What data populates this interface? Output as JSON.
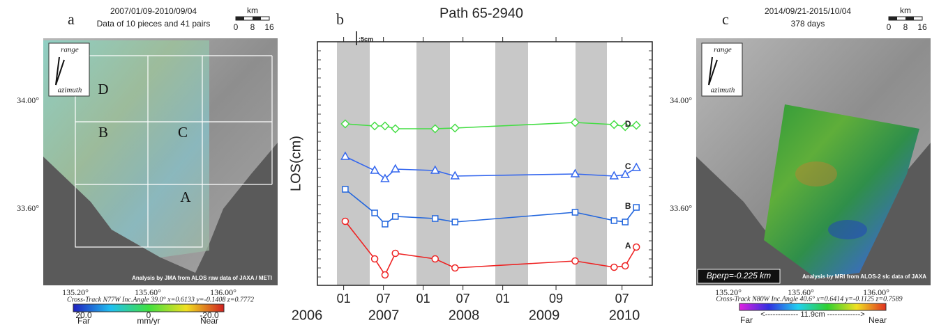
{
  "panel_a": {
    "letter": "a",
    "title": "2007/01/09-2010/09/04",
    "subtitle": "Data of 10 pieces and 41 pairs",
    "scale_unit": "km",
    "scale_ticks": [
      "0",
      "8",
      "16"
    ],
    "lat_labels": [
      "34.00°",
      "33.60°"
    ],
    "lon_labels": [
      "135.20°",
      "135.60°",
      "136.00°"
    ],
    "range": "range",
    "azimuth": "azimuth",
    "region_labels": [
      "D",
      "B",
      "C",
      "A"
    ],
    "credit": "Analysis by JMA from ALOS raw data of JAXA / METI",
    "geometry": "Cross-Track N77W Inc.Angle 39.0° x=0.6133 y=-0.1408 z=0.7772",
    "colorbar_ticks": [
      "20.0",
      "0",
      "-20.0"
    ],
    "colorbar_far": "Far",
    "colorbar_unit": "mm/yr",
    "colorbar_near": "Near"
  },
  "chart_data": {
    "type": "line",
    "letter": "b",
    "title": "Path 65-2940",
    "y_label": "LOS(cm)",
    "scale_label": ":5cm",
    "x_group_labels": [
      "2006",
      "2007",
      "2008",
      "2009",
      "2010"
    ],
    "xlim": [
      2006.67,
      2010.88
    ],
    "xticks": [
      {
        "value": 2007.0,
        "label": "01"
      },
      {
        "value": 2007.5,
        "label": "07"
      },
      {
        "value": 2008.0,
        "label": "01"
      },
      {
        "value": 2008.5,
        "label": "07"
      },
      {
        "value": 2009.0,
        "label": "01"
      },
      {
        "value": 2009.67,
        "label": "09"
      },
      {
        "value": 2010.5,
        "label": "07"
      }
    ],
    "ylim": [
      0,
      87.5
    ],
    "x": [
      2007.02,
      2007.39,
      2007.52,
      2007.65,
      2008.15,
      2008.4,
      2009.91,
      2010.4,
      2010.54,
      2010.68
    ],
    "series": [
      {
        "name": "D",
        "color": "#44dd44",
        "marker": "diamond",
        "values": [
          58,
          57.25,
          57.25,
          56.25,
          56.25,
          56.5,
          58.5,
          57.75,
          57,
          57.5
        ]
      },
      {
        "name": "C",
        "color": "#3366ee",
        "marker": "triangle",
        "values": [
          46.25,
          41.25,
          38.25,
          41.75,
          41.25,
          39.25,
          40,
          39.25,
          39.75,
          42.25
        ]
      },
      {
        "name": "B",
        "color": "#2266dd",
        "marker": "square",
        "values": [
          34.5,
          26,
          22,
          24.75,
          24,
          22.75,
          26.25,
          23.25,
          22.75,
          28
        ]
      },
      {
        "name": "A",
        "color": "#ee2222",
        "marker": "circle",
        "values": [
          23,
          9.5,
          3.75,
          11.5,
          9.5,
          6.25,
          8.75,
          6.5,
          7,
          13.75
        ]
      }
    ]
  },
  "panel_c": {
    "letter": "c",
    "title": "2014/09/21-2015/10/04",
    "subtitle": "378 days",
    "scale_unit": "km",
    "scale_ticks": [
      "0",
      "8",
      "16"
    ],
    "lat_labels": [
      "34.00°",
      "33.60°"
    ],
    "lon_labels": [
      "135.20°",
      "135.60°",
      "136.00°"
    ],
    "range": "range",
    "azimuth": "azimuth",
    "bperp": "Bperp=-0.225 km",
    "credit": "Analysis by MRI from ALOS-2 slc data of JAXA",
    "geometry": "Cross-Track N80W Inc.Angle 40.6° x=0.6414 y=-0.1125 z=0.7589",
    "colorbar_span": "<------------- 11.9cm ------------->",
    "colorbar_far": "Far",
    "colorbar_near": "Near"
  }
}
